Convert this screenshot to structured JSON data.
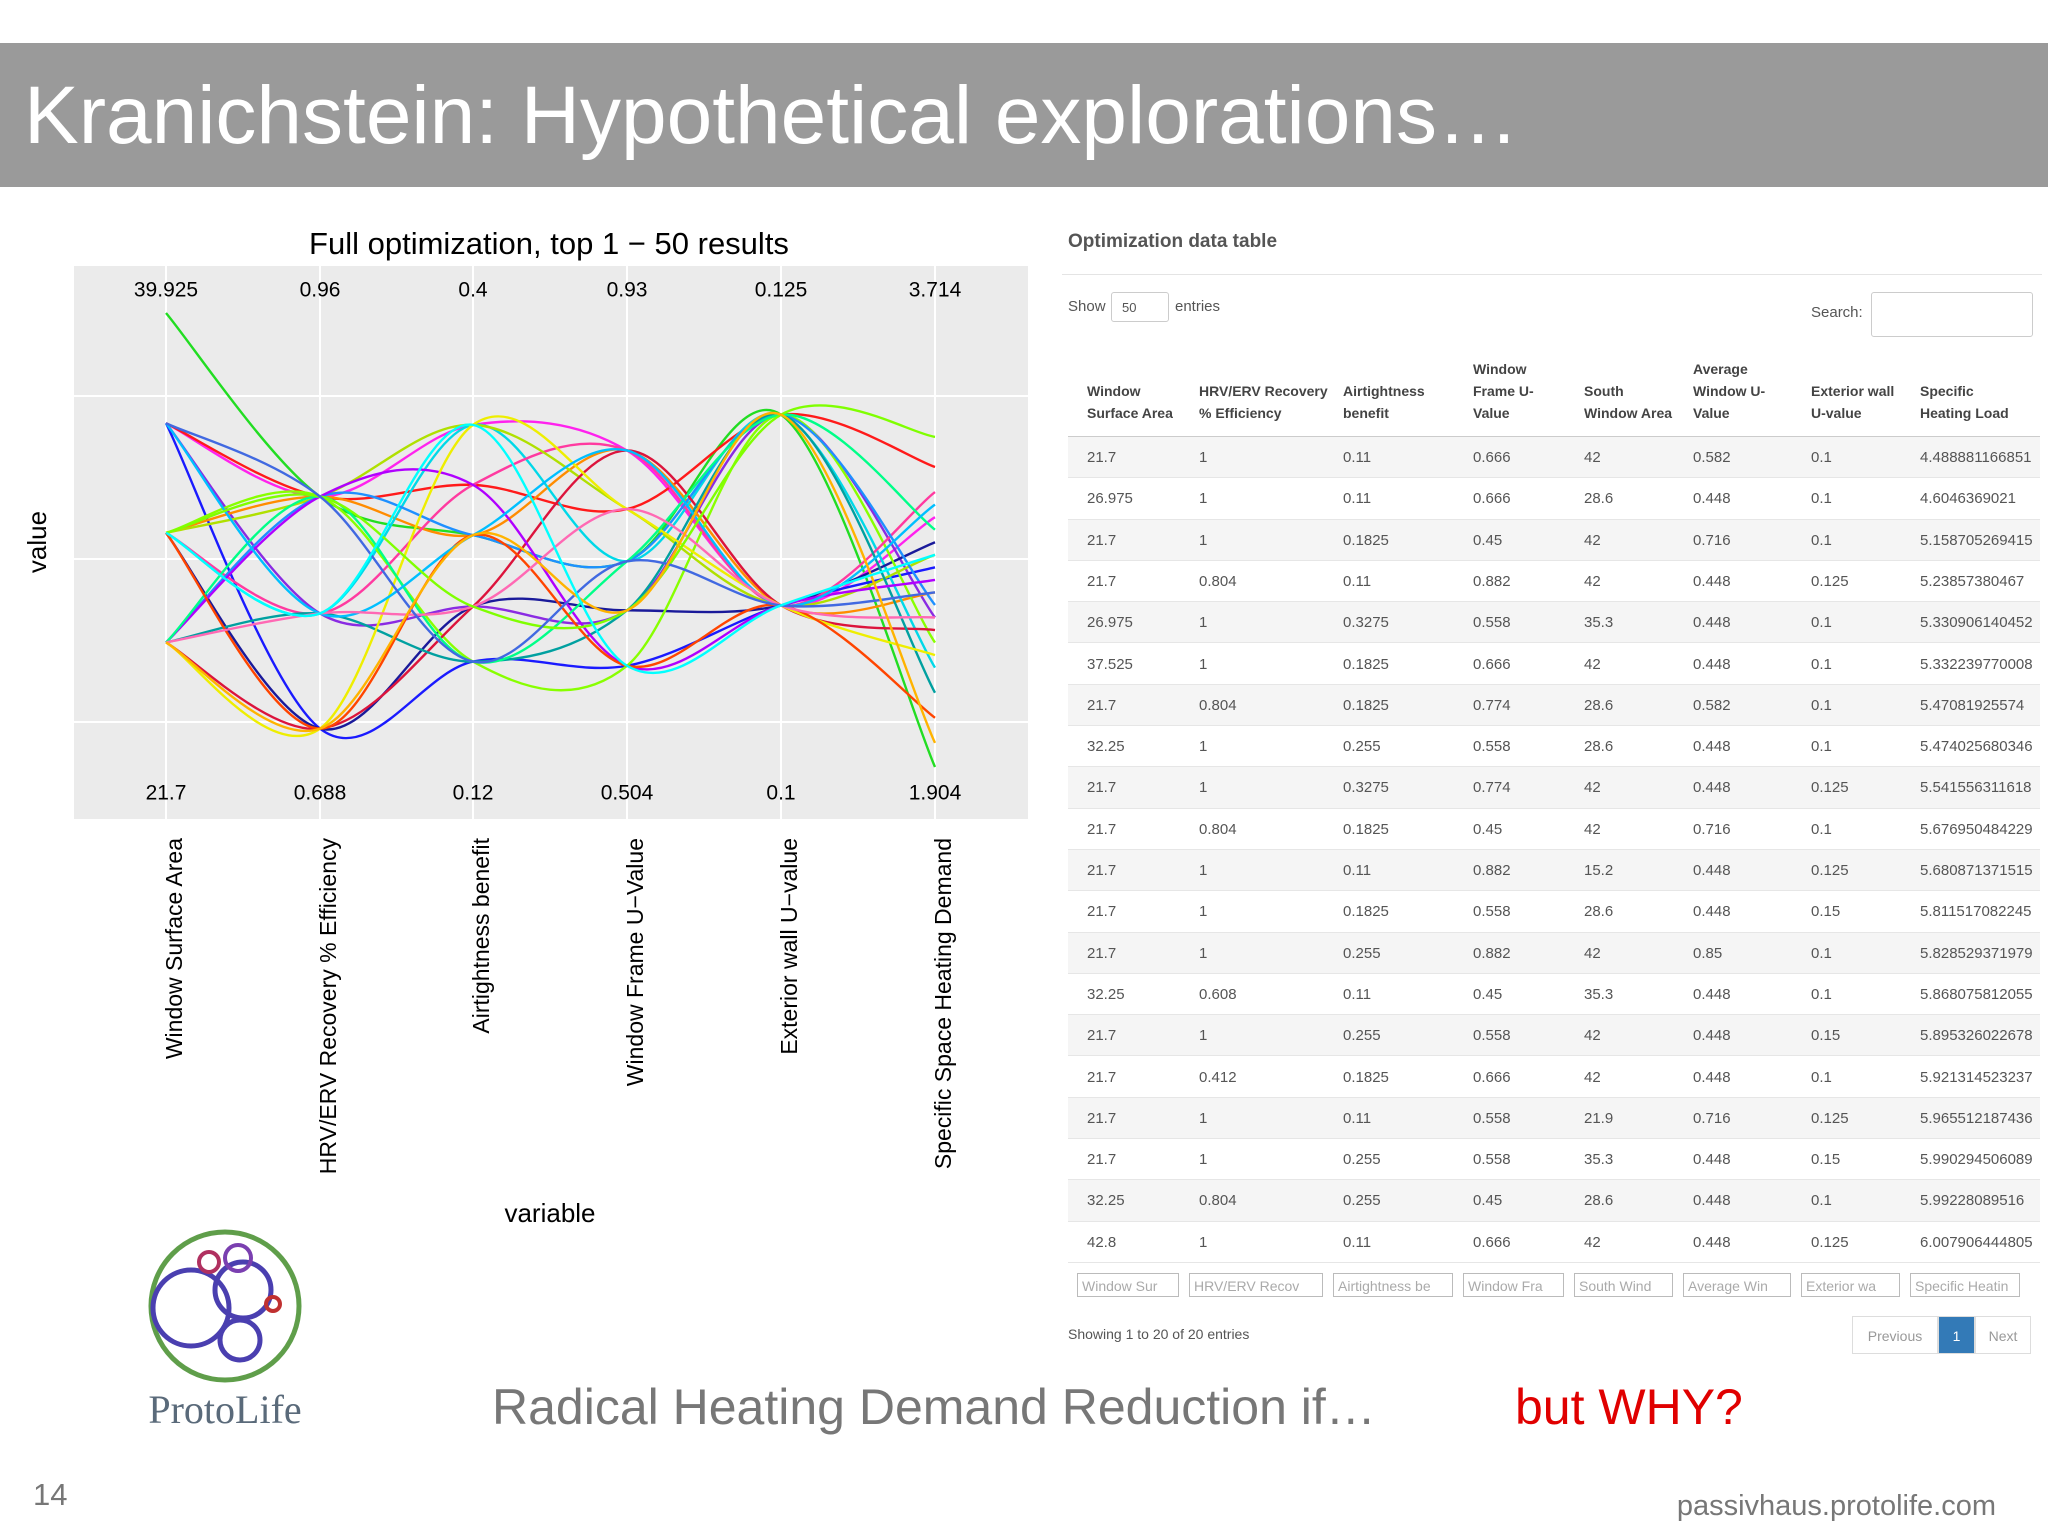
{
  "header": {
    "title": "Kranichstein: Hypothetical explorations…"
  },
  "chart_data": {
    "type": "parallel",
    "title": "Full optimization, top 1 − 50 results",
    "y_label": "value",
    "x_label": "variable",
    "categories": [
      "Window Surface Area",
      "HRV/ERV Recovery % Efficiency",
      "Airtightness benefit",
      "Window Frame U−Value",
      "Exterior wall U−value",
      "Specific Space Heating Demand"
    ],
    "ylims": [
      [
        21.7,
        39.925
      ],
      [
        0.688,
        0.96
      ],
      [
        0.12,
        0.4
      ],
      [
        0.504,
        0.93
      ],
      [
        0.1,
        0.125
      ],
      [
        1.904,
        3.714
      ]
    ],
    "series": [
      {
        "color": "#22dd22",
        "values": [
          39.925,
          0.85,
          0.263,
          0.697,
          0.1194,
          1.904
        ]
      },
      {
        "color": "#ff22ee",
        "values": [
          35.5,
          0.85,
          0.331,
          0.801,
          0.1089,
          2.9
        ]
      },
      {
        "color": "#8a2be2",
        "values": [
          35.5,
          0.78,
          0.219,
          0.651,
          0.1194,
          2.5
        ]
      },
      {
        "color": "#1a1aff",
        "values": [
          35.5,
          0.711,
          0.185,
          0.599,
          0.1089,
          2.7
        ]
      },
      {
        "color": "#ff1a1a",
        "values": [
          35.5,
          0.85,
          0.294,
          0.746,
          0.1194,
          3.1
        ]
      },
      {
        "color": "#ff8c00",
        "values": [
          31.1,
          0.85,
          0.263,
          0.801,
          0.1089,
          2.6
        ]
      },
      {
        "color": "#00d8e8",
        "values": [
          31.1,
          0.78,
          0.331,
          0.697,
          0.1194,
          2.3
        ]
      },
      {
        "color": "#1a1a9a",
        "values": [
          31.1,
          0.711,
          0.219,
          0.651,
          0.1089,
          2.8
        ]
      },
      {
        "color": "#88ff00",
        "values": [
          31.1,
          0.85,
          0.185,
          0.599,
          0.1194,
          2.4
        ]
      },
      {
        "color": "#ff3aa0",
        "values": [
          31.1,
          0.78,
          0.294,
          0.801,
          0.1089,
          3.0
        ]
      },
      {
        "color": "#b0e000",
        "values": [
          31.1,
          0.85,
          0.331,
          0.746,
          0.1089,
          2.75
        ]
      },
      {
        "color": "#1e90ff",
        "values": [
          26.7,
          0.85,
          0.263,
          0.697,
          0.1194,
          2.55
        ]
      },
      {
        "color": "#dc143c",
        "values": [
          26.7,
          0.711,
          0.219,
          0.801,
          0.1089,
          2.45
        ]
      },
      {
        "color": "#00a0a0",
        "values": [
          26.7,
          0.78,
          0.185,
          0.651,
          0.1194,
          2.2
        ]
      },
      {
        "color": "#b000ff",
        "values": [
          26.7,
          0.85,
          0.294,
          0.599,
          0.1089,
          2.65
        ]
      },
      {
        "color": "#eeee00",
        "values": [
          26.7,
          0.711,
          0.331,
          0.746,
          0.1089,
          2.35
        ]
      },
      {
        "color": "#00ff88",
        "values": [
          26.7,
          0.85,
          0.185,
          0.697,
          0.1194,
          2.85
        ]
      },
      {
        "color": "#ff4500",
        "values": [
          31.1,
          0.711,
          0.263,
          0.599,
          0.1089,
          2.1
        ]
      },
      {
        "color": "#00bfff",
        "values": [
          35.5,
          0.78,
          0.263,
          0.801,
          0.1089,
          2.95
        ]
      },
      {
        "color": "#ff69b4",
        "values": [
          26.7,
          0.78,
          0.219,
          0.746,
          0.1089,
          2.5
        ]
      },
      {
        "color": "#7fff00",
        "values": [
          31.1,
          0.85,
          0.219,
          0.651,
          0.1194,
          3.22
        ]
      },
      {
        "color": "#4169e1",
        "values": [
          35.5,
          0.85,
          0.185,
          0.697,
          0.1089,
          2.6
        ]
      },
      {
        "color": "#ffb300",
        "values": [
          26.7,
          0.711,
          0.263,
          0.651,
          0.1194,
          2.0
        ]
      },
      {
        "color": "#00ffff",
        "values": [
          31.1,
          0.78,
          0.331,
          0.599,
          0.1089,
          2.75
        ]
      }
    ]
  },
  "table": {
    "title": "Optimization data table",
    "length_label": "Show",
    "length_value": "50",
    "length_suffix": "entries",
    "search_label": "Search:",
    "columns": [
      "Window Surface Area",
      "HRV/ERV Recovery % Efficiency",
      "Airtightness benefit",
      "Window Frame U-Value",
      "South Window Area",
      "Average Window U-Value",
      "Exterior wall U-value",
      "Specific Heating Load"
    ],
    "rows": [
      [
        "21.7",
        "1",
        "0.11",
        "0.666",
        "42",
        "0.582",
        "0.1",
        "4.488881166851"
      ],
      [
        "26.975",
        "1",
        "0.11",
        "0.666",
        "28.6",
        "0.448",
        "0.1",
        "4.6046369021"
      ],
      [
        "21.7",
        "1",
        "0.1825",
        "0.45",
        "42",
        "0.716",
        "0.1",
        "5.158705269415"
      ],
      [
        "21.7",
        "0.804",
        "0.11",
        "0.882",
        "42",
        "0.448",
        "0.125",
        "5.23857380467"
      ],
      [
        "26.975",
        "1",
        "0.3275",
        "0.558",
        "35.3",
        "0.448",
        "0.1",
        "5.330906140452"
      ],
      [
        "37.525",
        "1",
        "0.1825",
        "0.666",
        "42",
        "0.448",
        "0.1",
        "5.332239770008"
      ],
      [
        "21.7",
        "0.804",
        "0.1825",
        "0.774",
        "28.6",
        "0.582",
        "0.1",
        "5.47081925574"
      ],
      [
        "32.25",
        "1",
        "0.255",
        "0.558",
        "28.6",
        "0.448",
        "0.1",
        "5.474025680346"
      ],
      [
        "21.7",
        "1",
        "0.3275",
        "0.774",
        "42",
        "0.448",
        "0.125",
        "5.541556311618"
      ],
      [
        "21.7",
        "0.804",
        "0.1825",
        "0.45",
        "42",
        "0.716",
        "0.1",
        "5.676950484229"
      ],
      [
        "21.7",
        "1",
        "0.11",
        "0.882",
        "15.2",
        "0.448",
        "0.125",
        "5.680871371515"
      ],
      [
        "21.7",
        "1",
        "0.1825",
        "0.558",
        "28.6",
        "0.448",
        "0.15",
        "5.811517082245"
      ],
      [
        "21.7",
        "1",
        "0.255",
        "0.882",
        "42",
        "0.85",
        "0.1",
        "5.828529371979"
      ],
      [
        "32.25",
        "0.608",
        "0.11",
        "0.45",
        "35.3",
        "0.448",
        "0.1",
        "5.868075812055"
      ],
      [
        "21.7",
        "1",
        "0.255",
        "0.558",
        "42",
        "0.448",
        "0.15",
        "5.895326022678"
      ],
      [
        "21.7",
        "0.412",
        "0.1825",
        "0.666",
        "42",
        "0.448",
        "0.1",
        "5.921314523237"
      ],
      [
        "21.7",
        "1",
        "0.11",
        "0.558",
        "21.9",
        "0.716",
        "0.125",
        "5.965512187436"
      ],
      [
        "21.7",
        "1",
        "0.255",
        "0.558",
        "35.3",
        "0.448",
        "0.15",
        "5.990294506089"
      ],
      [
        "32.25",
        "0.804",
        "0.255",
        "0.45",
        "28.6",
        "0.448",
        "0.1",
        "5.99228089516"
      ],
      [
        "42.8",
        "1",
        "0.11",
        "0.666",
        "42",
        "0.448",
        "0.125",
        "6.007906444805"
      ]
    ],
    "filters": [
      "Window Sur",
      "HRV/ERV Recov",
      "Airtightness be",
      "Window Fra",
      "South Wind",
      "Average Win",
      "Exterior wa",
      "Specific Heatin"
    ],
    "info": "Showing 1 to 20 of 20 entries",
    "pagination": [
      "Previous",
      "1",
      "Next"
    ]
  },
  "logo": {
    "text": "ProtoLife"
  },
  "footer": {
    "statement": "Radical Heating Demand Reduction if…",
    "question": "but WHY?",
    "page_number": "14",
    "url": "passivhaus.protolife.com"
  }
}
